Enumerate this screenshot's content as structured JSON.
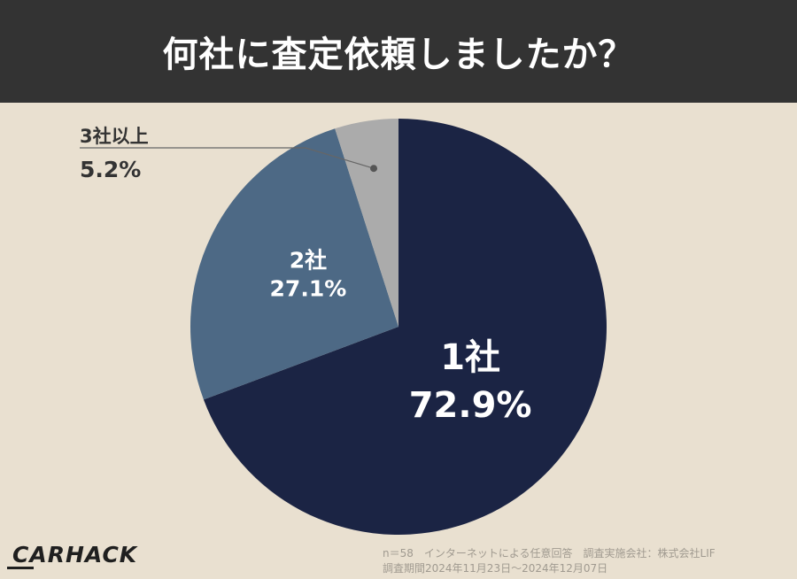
{
  "header": {
    "title": "何社に査定依頼しましたか？"
  },
  "chart_data": {
    "type": "pie",
    "title": "何社に査定依頼しましたか？",
    "slices": [
      {
        "label": "1社",
        "value": 72.9,
        "value_label": "72.9%",
        "color": "#1b2444"
      },
      {
        "label": "2社",
        "value": 27.1,
        "value_label": "27.1%",
        "color": "#4d6985"
      },
      {
        "label": "3社以上",
        "value": 5.2,
        "value_label": "5.2%",
        "color": "#ababab"
      }
    ],
    "start_angle_deg": 0,
    "direction": "clockwise",
    "legend": "none"
  },
  "footnote": {
    "line1": "n＝58　インターネットによる任意回答　調査実施会社：株式会社LIF",
    "line2": "調査期間2024年11月23日〜2024年12月07日"
  },
  "logo": {
    "text": "CARHACK"
  }
}
